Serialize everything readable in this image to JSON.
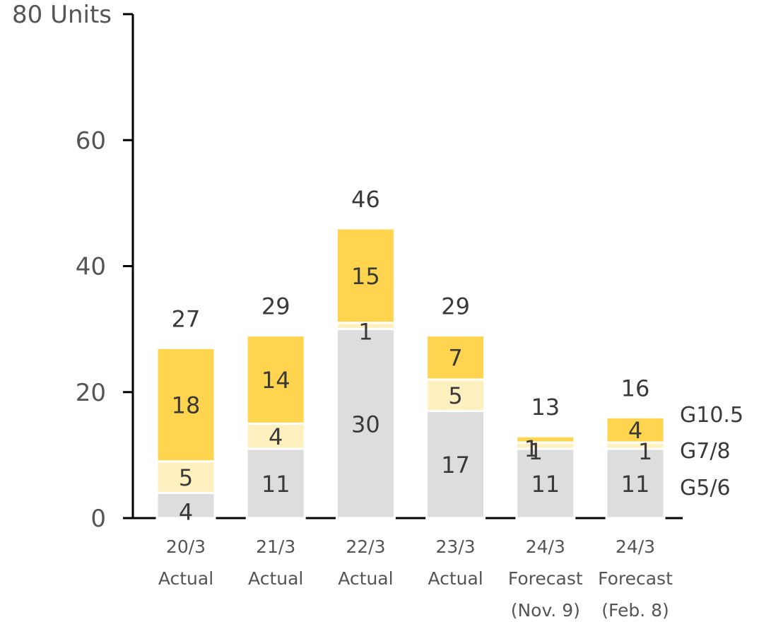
{
  "chart_data": {
    "type": "bar",
    "stacked": true,
    "title": "",
    "xlabel": "",
    "ylabel": "",
    "ylim": [
      0,
      80
    ],
    "yticks": [
      "0",
      "20",
      "40",
      "60",
      "80 Units"
    ],
    "grid": false,
    "legend": "right",
    "categories": [
      [
        "20/3",
        "Actual"
      ],
      [
        "21/3",
        "Actual"
      ],
      [
        "22/3",
        "Actual"
      ],
      [
        "23/3",
        "Actual"
      ],
      [
        "24/3",
        "Forecast",
        "(Nov. 9)"
      ],
      [
        "24/3",
        "Forecast",
        "(Feb. 8)"
      ]
    ],
    "series": [
      {
        "name": "G5/6",
        "color": "#dddddd",
        "values": [
          4,
          11,
          30,
          17,
          11,
          11
        ]
      },
      {
        "name": "G7/8",
        "color": "#fff0bf",
        "values": [
          5,
          4,
          1,
          5,
          1,
          1
        ]
      },
      {
        "name": "G10.5",
        "color": "#ffd54f",
        "values": [
          18,
          14,
          15,
          7,
          1,
          4
        ]
      }
    ],
    "totals": [
      27,
      29,
      46,
      29,
      13,
      16
    ]
  }
}
